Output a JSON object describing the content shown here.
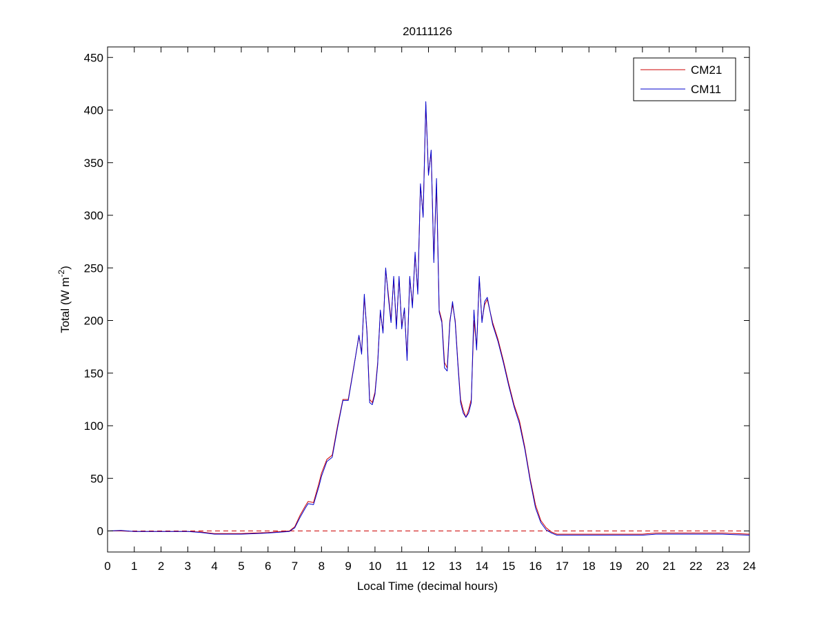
{
  "chart_data": {
    "type": "line",
    "title": "20111126",
    "xlabel": "Local Time (decimal hours)",
    "ylabel_main": "Total (W m",
    "ylabel_exp": "-2",
    "ylabel_close": ")",
    "xlim": [
      0,
      24
    ],
    "ylim": [
      -20,
      460
    ],
    "xticks": [
      0,
      1,
      2,
      3,
      4,
      5,
      6,
      7,
      8,
      9,
      10,
      11,
      12,
      13,
      14,
      15,
      16,
      17,
      18,
      19,
      20,
      21,
      22,
      23,
      24
    ],
    "yticks": [
      0,
      50,
      100,
      150,
      200,
      250,
      300,
      350,
      400,
      450
    ],
    "grid": false,
    "legend_position": "top-right",
    "reference_line": {
      "y": 0,
      "style": "dashed",
      "color": "#cc0000"
    },
    "series": [
      {
        "name": "CM21",
        "color": "#cc0000",
        "x": [
          0,
          0.5,
          1,
          2,
          3,
          3.5,
          4,
          5,
          6,
          6.8,
          7.0,
          7.2,
          7.4,
          7.5,
          7.7,
          7.9,
          8.0,
          8.2,
          8.4,
          8.6,
          8.8,
          9.0,
          9.2,
          9.4,
          9.5,
          9.6,
          9.7,
          9.8,
          9.9,
          10.0,
          10.1,
          10.2,
          10.3,
          10.4,
          10.5,
          10.6,
          10.7,
          10.8,
          10.9,
          11.0,
          11.1,
          11.2,
          11.3,
          11.4,
          11.5,
          11.6,
          11.7,
          11.8,
          11.9,
          12.0,
          12.1,
          12.2,
          12.3,
          12.4,
          12.5,
          12.6,
          12.7,
          12.8,
          12.9,
          13.0,
          13.1,
          13.2,
          13.3,
          13.4,
          13.5,
          13.6,
          13.7,
          13.8,
          13.9,
          14.0,
          14.1,
          14.2,
          14.4,
          14.6,
          14.8,
          15.0,
          15.2,
          15.4,
          15.6,
          15.8,
          16.0,
          16.2,
          16.4,
          16.6,
          16.8,
          17.0,
          17.5,
          18,
          19,
          20,
          20.5,
          21,
          22,
          23,
          24
        ],
        "y": [
          0,
          0,
          -0.5,
          -0.5,
          -0.5,
          -1,
          -2.5,
          -2.5,
          -1.5,
          0,
          4,
          15,
          24,
          28,
          27,
          45,
          55,
          68,
          72,
          100,
          125,
          125,
          155,
          185,
          170,
          222,
          190,
          125,
          122,
          132,
          160,
          208,
          190,
          248,
          225,
          200,
          240,
          195,
          240,
          195,
          210,
          165,
          240,
          215,
          262,
          228,
          328,
          300,
          405,
          340,
          360,
          258,
          330,
          210,
          200,
          160,
          155,
          200,
          215,
          200,
          160,
          125,
          115,
          108,
          115,
          125,
          200,
          175,
          240,
          200,
          215,
          220,
          198,
          182,
          162,
          140,
          120,
          105,
          80,
          50,
          25,
          10,
          3,
          -1,
          -3,
          -3,
          -3,
          -3,
          -3,
          -3,
          -2,
          -2,
          -2,
          -2,
          -3
        ]
      },
      {
        "name": "CM11",
        "color": "#0000cc",
        "x": [
          0,
          0.5,
          1,
          2,
          3,
          3.5,
          4,
          5,
          6,
          6.8,
          7.0,
          7.2,
          7.4,
          7.5,
          7.7,
          7.9,
          8.0,
          8.2,
          8.4,
          8.6,
          8.8,
          9.0,
          9.2,
          9.4,
          9.5,
          9.6,
          9.7,
          9.8,
          9.9,
          10.0,
          10.1,
          10.2,
          10.3,
          10.4,
          10.5,
          10.6,
          10.7,
          10.8,
          10.9,
          11.0,
          11.1,
          11.2,
          11.3,
          11.4,
          11.5,
          11.6,
          11.7,
          11.8,
          11.9,
          12.0,
          12.1,
          12.2,
          12.3,
          12.4,
          12.5,
          12.6,
          12.7,
          12.8,
          12.9,
          13.0,
          13.1,
          13.2,
          13.3,
          13.4,
          13.5,
          13.6,
          13.7,
          13.8,
          13.9,
          14.0,
          14.1,
          14.2,
          14.4,
          14.6,
          14.8,
          15.0,
          15.2,
          15.4,
          15.6,
          15.8,
          16.0,
          16.2,
          16.4,
          16.6,
          16.8,
          17.0,
          17.5,
          18,
          19,
          20,
          20.5,
          21,
          22,
          23,
          24
        ],
        "y": [
          0,
          0.5,
          -0.5,
          -0.5,
          -0.5,
          -1.5,
          -3,
          -3,
          -2,
          -0.5,
          3,
          13,
          22,
          26,
          25,
          42,
          52,
          66,
          70,
          98,
          124,
          124,
          154,
          186,
          168,
          225,
          188,
          122,
          120,
          130,
          158,
          210,
          188,
          250,
          222,
          198,
          242,
          192,
          242,
          192,
          212,
          162,
          242,
          212,
          265,
          225,
          330,
          298,
          408,
          338,
          362,
          255,
          335,
          208,
          198,
          155,
          152,
          198,
          218,
          198,
          158,
          122,
          112,
          108,
          112,
          122,
          210,
          172,
          242,
          198,
          218,
          222,
          196,
          180,
          160,
          138,
          118,
          102,
          78,
          48,
          22,
          8,
          1,
          -2,
          -4,
          -4,
          -4,
          -4,
          -4,
          -4,
          -3,
          -3,
          -3,
          -3,
          -4
        ]
      }
    ]
  }
}
